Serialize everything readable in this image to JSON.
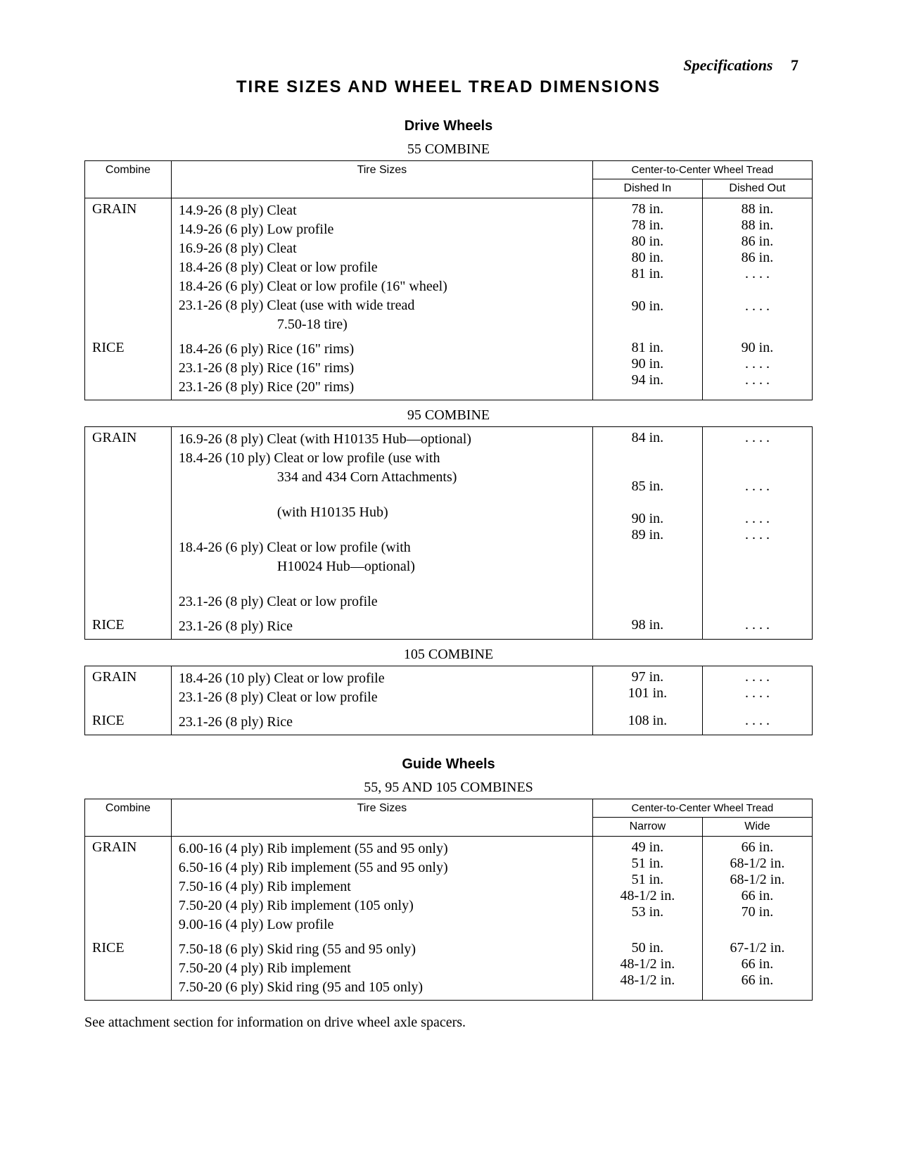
{
  "page": {
    "running_section": "Specifications",
    "page_number": "7",
    "title": "TIRE SIZES AND WHEEL TREAD DIMENSIONS",
    "drive_heading": "Drive Wheels",
    "guide_heading": "Guide Wheels",
    "footnote": "See attachment section for information on drive wheel axle spacers.",
    "colors": {
      "text": "#000000",
      "bg": "#ffffff",
      "border": "#000000"
    },
    "fonts": {
      "body_family": "Times New Roman",
      "heading_family": "Arial"
    }
  },
  "drive_header": {
    "col_combine": "Combine",
    "col_sizes": "Tire Sizes",
    "group_header": "Center-to-Center\nWheel Tread",
    "col_a": "Dished In",
    "col_b": "Dished Out"
  },
  "drive55": {
    "caption": "55 COMBINE",
    "grain_label": "GRAIN",
    "rice_label": "RICE",
    "grain": [
      {
        "size": "14.9-26 (8 ply) Cleat",
        "a": "78 in.",
        "b": "88 in."
      },
      {
        "size": "14.9-26 (6 ply) Low profile",
        "a": "78 in.",
        "b": "88 in."
      },
      {
        "size": "16.9-26 (8 ply) Cleat",
        "a": "80 in.",
        "b": "86 in."
      },
      {
        "size": "18.4-26 (8 ply) Cleat or low profile",
        "a": "80 in.",
        "b": "86 in."
      },
      {
        "size": "18.4-26 (6 ply) Cleat or low profile (16\" wheel)",
        "a": "81 in.",
        "b": ". . . ."
      },
      {
        "size": "23.1-26 (8 ply) Cleat (use with wide tread",
        "a": "",
        "b": ""
      },
      {
        "size_indent": "7.50-18 tire)",
        "a": "90 in.",
        "b": ". . . ."
      }
    ],
    "rice": [
      {
        "size": "18.4-26 (6 ply) Rice (16\" rims)",
        "a": "81 in.",
        "b": "90 in."
      },
      {
        "size": "23.1-26 (8 ply) Rice (16\" rims)",
        "a": "90 in.",
        "b": ". . . ."
      },
      {
        "size": "23.1-26 (8 ply) Rice (20\" rims)",
        "a": "94 in.",
        "b": ". . . ."
      }
    ]
  },
  "drive95": {
    "caption": "95 COMBINE",
    "grain_label": "GRAIN",
    "rice_label": "RICE",
    "grain": [
      {
        "size": "16.9-26 (8 ply) Cleat (with H10135 Hub—optional)",
        "a": "84 in.",
        "b": ". . . ."
      },
      {
        "size": "18.4-26 (10 ply) Cleat or low profile (use with",
        "a": "",
        "b": ""
      },
      {
        "size_indent": "334 and 434 Corn Attachments)",
        "a": "",
        "b": ""
      },
      {
        "size_indent": "(with H10135 Hub)",
        "a": "85 in.",
        "b": ". . . ."
      },
      {
        "size": "18.4-26 (6 ply) Cleat or low profile (with",
        "a": "",
        "b": ""
      },
      {
        "size_indent": "H10024 Hub—optional)",
        "a": "90 in.",
        "b": ". . . ."
      },
      {
        "size": "23.1-26 (8 ply) Cleat or low profile",
        "a": "89 in.",
        "b": ". . . ."
      }
    ],
    "rice": [
      {
        "size": "23.1-26 (8 ply) Rice",
        "a": "98 in.",
        "b": ". . . ."
      }
    ]
  },
  "drive105": {
    "caption": "105 COMBINE",
    "grain_label": "GRAIN",
    "rice_label": "RICE",
    "grain": [
      {
        "size": "18.4-26 (10 ply) Cleat or low profile",
        "a": "97 in.",
        "b": ". . . ."
      },
      {
        "size": "23.1-26 (8 ply) Cleat or low profile",
        "a": "101 in.",
        "b": ". . . ."
      }
    ],
    "rice": [
      {
        "size": "23.1-26 (8 ply) Rice",
        "a": "108 in.",
        "b": ". . . ."
      }
    ]
  },
  "guide_header": {
    "col_combine": "Combine",
    "col_sizes": "Tire Sizes",
    "group_header": "Center-to-Center\nWheel Tread",
    "col_a": "Narrow",
    "col_b": "Wide"
  },
  "guide": {
    "caption": "55, 95 AND 105 COMBINES",
    "grain_label": "GRAIN",
    "rice_label": "RICE",
    "grain": [
      {
        "size": "6.00-16 (4 ply) Rib implement (55 and 95 only)",
        "a": "49 in.",
        "b": "66 in."
      },
      {
        "size": "6.50-16 (4 ply) Rib implement (55 and 95 only)",
        "a": "51 in.",
        "b": "68-1/2 in."
      },
      {
        "size": "7.50-16 (4 ply) Rib implement",
        "a": "51 in.",
        "b": "68-1/2 in."
      },
      {
        "size": "7.50-20 (4 ply) Rib implement (105 only)",
        "a": "48-1/2 in.",
        "b": "66 in."
      },
      {
        "size": "9.00-16 (4 ply) Low profile",
        "a": "53 in.",
        "b": "70 in."
      }
    ],
    "rice": [
      {
        "size": "7.50-18 (6 ply) Skid ring (55 and 95 only)",
        "a": "50 in.",
        "b": "67-1/2 in."
      },
      {
        "size": "7.50-20 (4 ply) Rib implement",
        "a": "48-1/2 in.",
        "b": "66 in."
      },
      {
        "size": "7.50-20 (6 ply) Skid ring (95 and 105 only)",
        "a": "48-1/2 in.",
        "b": "66 in."
      }
    ]
  }
}
